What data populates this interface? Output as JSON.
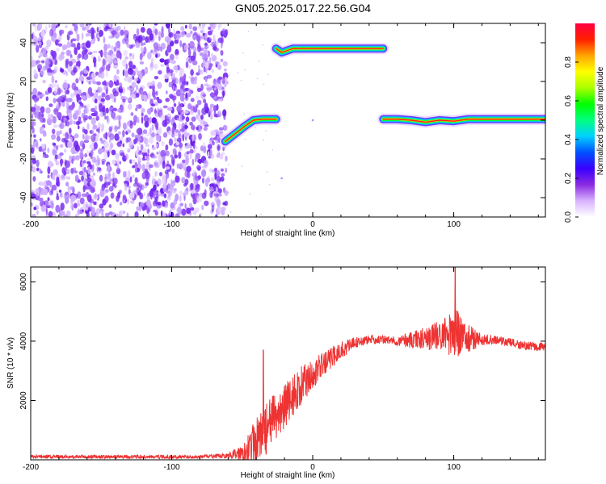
{
  "title": "GN05.2025.017.22.56.G04",
  "chart_data": [
    {
      "type": "heatmap",
      "xlabel": "Height of straight line (km)",
      "ylabel": "Frequency (Hz)",
      "xlim": [
        -200,
        165
      ],
      "ylim": [
        -50,
        50
      ],
      "xticks": [
        -200,
        -100,
        0,
        100
      ],
      "yticks": [
        -40,
        -20,
        0,
        20,
        40
      ],
      "colorbar": {
        "label": "Normalized spectral amplitude",
        "range": [
          0,
          1
        ],
        "ticks": [
          "0.0",
          "0.2",
          "0.4",
          "0.6",
          "0.8"
        ],
        "colormap": [
          "#ffffff",
          "#d9b3ff",
          "#8a2be2",
          "#3a00ff",
          "#0050ff",
          "#00d0ff",
          "#00ff80",
          "#00ff00",
          "#aaff00",
          "#ffff00",
          "#ffa500",
          "#ff2000",
          "#ff0040"
        ]
      },
      "noise_region_x": [
        -200,
        -60
      ],
      "tracks": [
        {
          "x": [
            -62,
            -55,
            -48,
            -42,
            -36,
            -30,
            -26
          ],
          "y": [
            -11,
            -7,
            -3,
            0,
            0.5,
            0.5,
            0.5
          ]
        },
        {
          "x": [
            -26,
            -22,
            -18,
            -14,
            -8,
            0,
            10,
            30,
            50
          ],
          "y": [
            37,
            35,
            36,
            37,
            37,
            37,
            37,
            37,
            37
          ]
        },
        {
          "x": [
            50,
            60,
            70,
            80,
            90,
            100,
            110,
            120,
            140,
            165
          ],
          "y": [
            0.5,
            0.5,
            0,
            -1,
            0,
            -0.5,
            0.5,
            0.5,
            0.5,
            0.5
          ]
        }
      ],
      "points": [
        {
          "x": -22,
          "y": -30
        },
        {
          "x": 0,
          "y": 0
        }
      ]
    },
    {
      "type": "line",
      "xlabel": "Height of straight line (km)",
      "ylabel": "SNR (10 * v/v)",
      "xlim": [
        -200,
        165
      ],
      "ylim": [
        0,
        6500
      ],
      "xticks": [
        -200,
        -100,
        0,
        100
      ],
      "yticks": [
        2000,
        4000,
        6000
      ],
      "color": "#ee3333",
      "series": [
        {
          "x": [
            -200,
            -180,
            -160,
            -140,
            -120,
            -100,
            -80,
            -60,
            -50,
            -40,
            -30,
            -20,
            -10,
            0,
            10,
            20,
            30,
            40,
            50,
            60,
            70,
            80,
            90,
            100,
            110,
            120,
            130,
            140,
            150,
            165
          ],
          "values": [
            100,
            100,
            100,
            100,
            100,
            100,
            100,
            130,
            250,
            600,
            1200,
            1800,
            2400,
            2900,
            3300,
            3700,
            3950,
            4050,
            4050,
            4000,
            4050,
            4100,
            4200,
            4300,
            4100,
            4050,
            4050,
            3950,
            3850,
            3800
          ],
          "noise": [
            60,
            60,
            60,
            60,
            60,
            60,
            60,
            80,
            300,
            800,
            900,
            800,
            700,
            500,
            400,
            300,
            200,
            150,
            150,
            150,
            300,
            400,
            500,
            900,
            500,
            200,
            150,
            150,
            150,
            150
          ]
        }
      ],
      "peaks": [
        {
          "x": 101,
          "y": 6500
        },
        {
          "x": -35,
          "y": 3700
        }
      ]
    }
  ]
}
